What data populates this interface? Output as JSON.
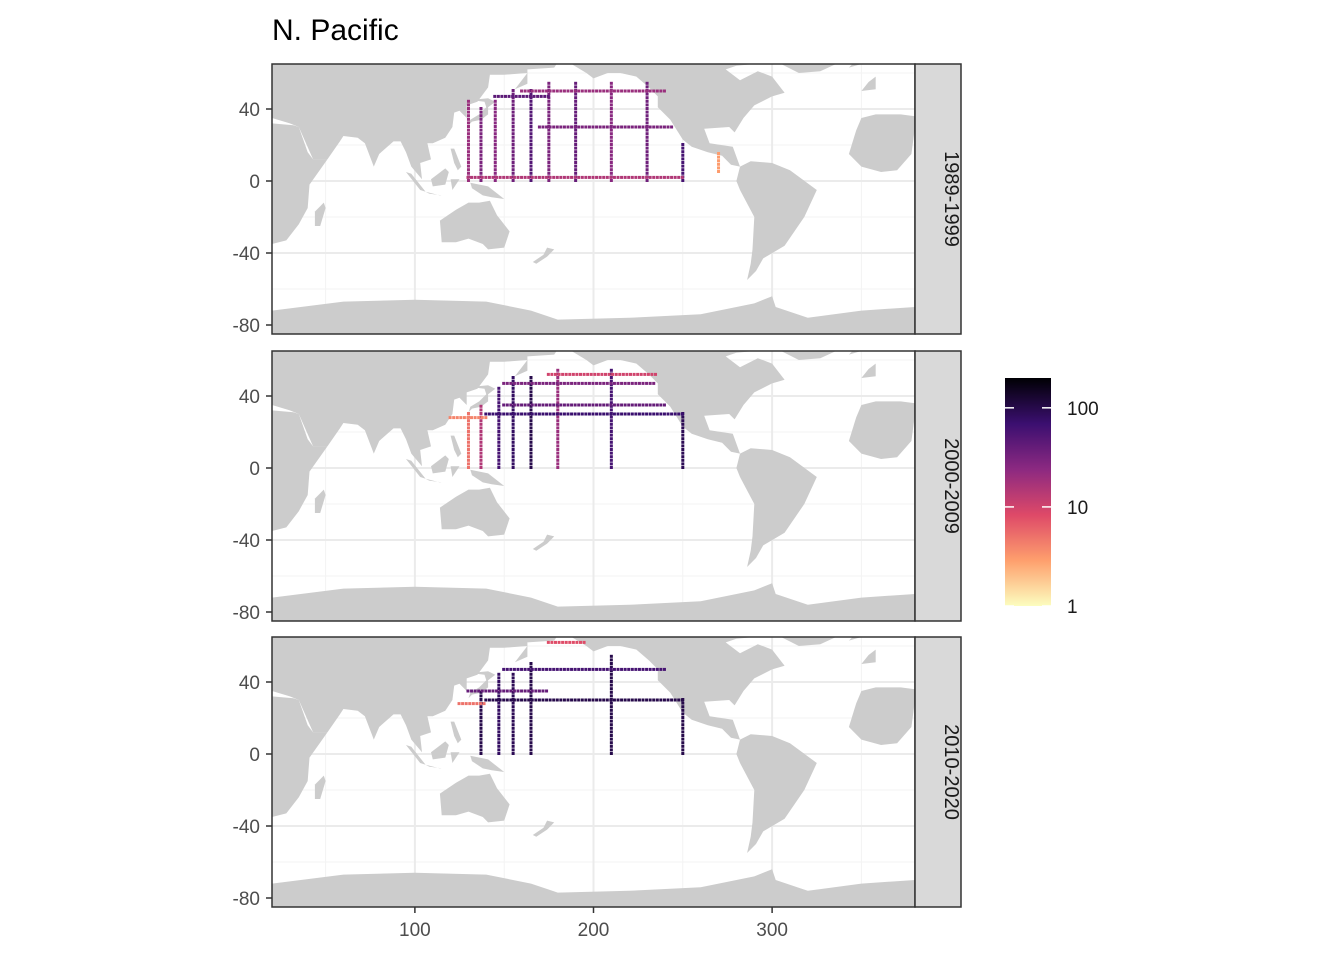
{
  "chart_data": {
    "type": "heatmap",
    "title": "N. Pacific",
    "xlabel": "",
    "ylabel": "",
    "x_ticks": [
      100,
      200,
      300
    ],
    "y_ticks": [
      40,
      0,
      -40,
      -80
    ],
    "xlim": [
      20,
      380
    ],
    "ylim": [
      -85,
      65
    ],
    "grid": true,
    "background_map": "world land masses (grey)",
    "colorbar": {
      "scale": "log10",
      "range": [
        1,
        200
      ],
      "ticks": [
        1,
        10,
        100
      ],
      "tick_labels": [
        "1",
        "10",
        "100"
      ],
      "palette": "magma (reversed)",
      "colors": [
        "#fcfdbf",
        "#fe9f6d",
        "#de4968",
        "#8c2981",
        "#3b0f70",
        "#000004"
      ]
    },
    "facets": [
      {
        "label": "1989-1999",
        "segments": [
          {
            "type": "meridian",
            "lon": 130,
            "lat_from": 0,
            "lat_to": 45,
            "value": 20
          },
          {
            "type": "meridian",
            "lon": 137,
            "lat_from": 0,
            "lat_to": 40,
            "value": 30
          },
          {
            "type": "meridian",
            "lon": 145,
            "lat_from": 0,
            "lat_to": 45,
            "value": 25
          },
          {
            "type": "meridian",
            "lon": 155,
            "lat_from": 0,
            "lat_to": 50,
            "value": 35
          },
          {
            "type": "meridian",
            "lon": 165,
            "lat_from": 0,
            "lat_to": 50,
            "value": 50
          },
          {
            "type": "meridian",
            "lon": 175,
            "lat_from": 0,
            "lat_to": 55,
            "value": 30
          },
          {
            "type": "meridian",
            "lon": 190,
            "lat_from": 0,
            "lat_to": 55,
            "value": 40
          },
          {
            "type": "meridian",
            "lon": 210,
            "lat_from": 0,
            "lat_to": 55,
            "value": 25
          },
          {
            "type": "meridian",
            "lon": 230,
            "lat_from": 0,
            "lat_to": 55,
            "value": 35
          },
          {
            "type": "meridian",
            "lon": 250,
            "lat_from": 0,
            "lat_to": 20,
            "value": 60
          },
          {
            "type": "parallel",
            "lat": 30,
            "lon_from": 170,
            "lon_to": 245,
            "value": 30
          },
          {
            "type": "parallel",
            "lat": 47,
            "lon_from": 145,
            "lon_to": 175,
            "value": 45
          },
          {
            "type": "parallel",
            "lat": 50,
            "lon_from": 160,
            "lon_to": 240,
            "value": 20
          },
          {
            "type": "parallel",
            "lat": 2,
            "lon_from": 130,
            "lon_to": 250,
            "value": 15
          },
          {
            "type": "meridian",
            "lon": 270,
            "lat_from": 5,
            "lat_to": 15,
            "value": 3
          }
        ]
      },
      {
        "label": "2000-2009",
        "segments": [
          {
            "type": "meridian",
            "lon": 130,
            "lat_from": 0,
            "lat_to": 30,
            "value": 5
          },
          {
            "type": "meridian",
            "lon": 137,
            "lat_from": 0,
            "lat_to": 35,
            "value": 15
          },
          {
            "type": "meridian",
            "lon": 147,
            "lat_from": 0,
            "lat_to": 45,
            "value": 60
          },
          {
            "type": "meridian",
            "lon": 155,
            "lat_from": 0,
            "lat_to": 50,
            "value": 80
          },
          {
            "type": "meridian",
            "lon": 165,
            "lat_from": 0,
            "lat_to": 50,
            "value": 100
          },
          {
            "type": "meridian",
            "lon": 180,
            "lat_from": 0,
            "lat_to": 55,
            "value": 20
          },
          {
            "type": "meridian",
            "lon": 210,
            "lat_from": 0,
            "lat_to": 55,
            "value": 60
          },
          {
            "type": "meridian",
            "lon": 250,
            "lat_from": 0,
            "lat_to": 30,
            "value": 90
          },
          {
            "type": "parallel",
            "lat": 30,
            "lon_from": 140,
            "lon_to": 250,
            "value": 70
          },
          {
            "type": "parallel",
            "lat": 35,
            "lon_from": 150,
            "lon_to": 240,
            "value": 40
          },
          {
            "type": "parallel",
            "lat": 47,
            "lon_from": 150,
            "lon_to": 235,
            "value": 30
          },
          {
            "type": "parallel",
            "lat": 52,
            "lon_from": 175,
            "lon_to": 235,
            "value": 10
          },
          {
            "type": "parallel",
            "lat": 28,
            "lon_from": 120,
            "lon_to": 140,
            "value": 4
          }
        ]
      },
      {
        "label": "2010-2020",
        "segments": [
          {
            "type": "meridian",
            "lon": 137,
            "lat_from": 0,
            "lat_to": 35,
            "value": 100
          },
          {
            "type": "meridian",
            "lon": 147,
            "lat_from": 0,
            "lat_to": 45,
            "value": 80
          },
          {
            "type": "meridian",
            "lon": 155,
            "lat_from": 0,
            "lat_to": 45,
            "value": 90
          },
          {
            "type": "meridian",
            "lon": 165,
            "lat_from": 0,
            "lat_to": 50,
            "value": 100
          },
          {
            "type": "meridian",
            "lon": 210,
            "lat_from": 0,
            "lat_to": 55,
            "value": 100
          },
          {
            "type": "meridian",
            "lon": 250,
            "lat_from": 0,
            "lat_to": 30,
            "value": 100
          },
          {
            "type": "parallel",
            "lat": 30,
            "lon_from": 140,
            "lon_to": 250,
            "value": 100
          },
          {
            "type": "parallel",
            "lat": 35,
            "lon_from": 130,
            "lon_to": 175,
            "value": 40
          },
          {
            "type": "parallel",
            "lat": 47,
            "lon_from": 150,
            "lon_to": 240,
            "value": 60
          },
          {
            "type": "parallel",
            "lat": 62,
            "lon_from": 175,
            "lon_to": 195,
            "value": 8
          },
          {
            "type": "parallel",
            "lat": 28,
            "lon_from": 125,
            "lon_to": 140,
            "value": 5
          }
        ]
      }
    ]
  }
}
